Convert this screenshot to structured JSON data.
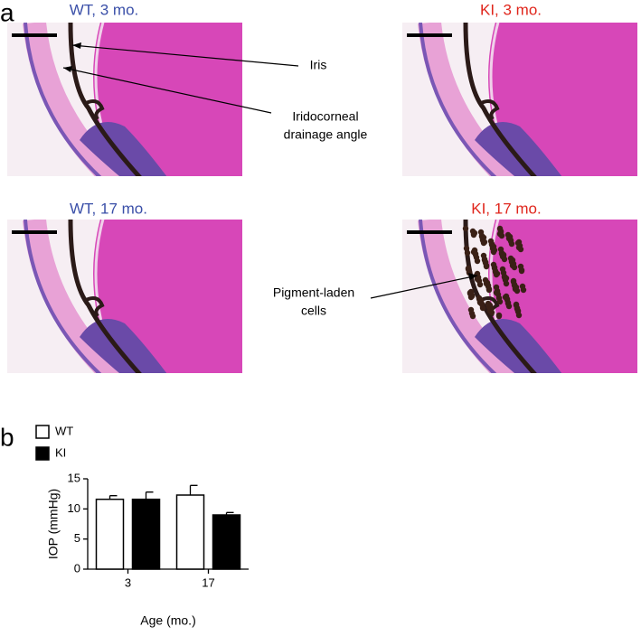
{
  "panel_labels": [
    "a",
    "b"
  ],
  "micrographs": [
    {
      "title": "WT, 3 mo.",
      "color": "#3a4fa8"
    },
    {
      "title": "KI, 3 mo.",
      "color": "#e0261c"
    },
    {
      "title": "WT, 17 mo.",
      "color": "#3a4fa8"
    },
    {
      "title": "KI, 17 mo.",
      "color": "#e0261c"
    }
  ],
  "annotations": {
    "iris": "Iris",
    "angle": [
      "Iridocorneal",
      "drainage angle"
    ],
    "pigment": [
      "Pigment-laden",
      "cells"
    ]
  },
  "chart_data": {
    "type": "bar",
    "x_label": "Age (mo.)",
    "y_label": "IOP (mmHg)",
    "categories": [
      "3",
      "17"
    ],
    "series": [
      {
        "name": "WT",
        "color": "#ffffff",
        "values": [
          11.6,
          12.3
        ],
        "errors": [
          0.6,
          1.6
        ]
      },
      {
        "name": "KI",
        "color": "#000000",
        "values": [
          11.6,
          9.0
        ],
        "errors": [
          1.2,
          0.4
        ]
      }
    ],
    "ylim": [
      0,
      15
    ],
    "yticks": [
      0,
      5,
      10,
      15
    ],
    "legend": "top-left"
  }
}
